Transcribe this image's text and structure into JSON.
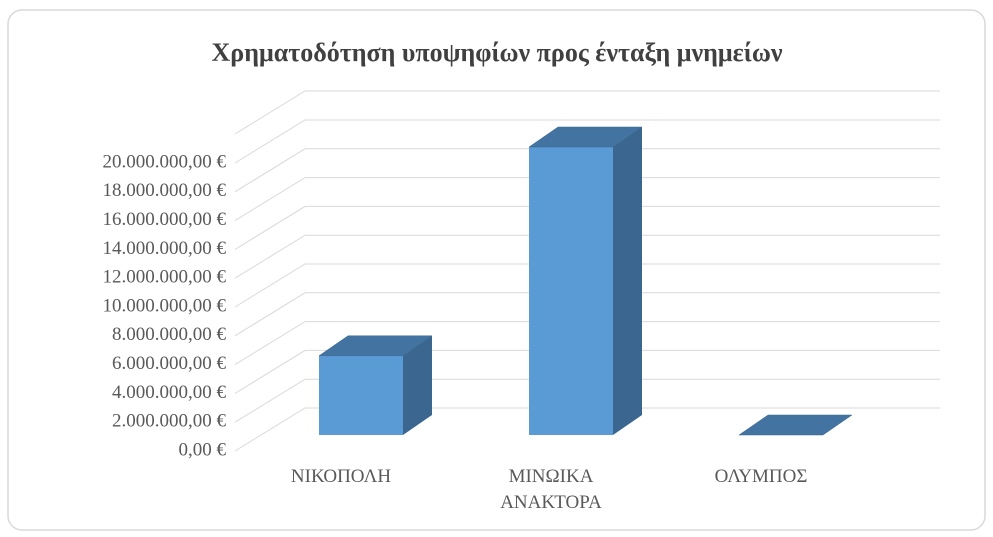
{
  "chart_data": {
    "type": "bar3d",
    "title": "Χρηματοδότηση υποψηφίων προς ένταξη μνημείων",
    "categories": [
      "ΝΙΚΟΠΟΛΗ",
      "ΜΙΝΩΙΚΑ ΑΝΑΚΤΟΡΑ",
      "ΟΛΥΜΠΟΣ"
    ],
    "values": [
      5500000,
      20000000,
      0
    ],
    "color": "#5b9bd5",
    "ylim": [
      0,
      20000000
    ],
    "yticks": [
      {
        "value": 0,
        "label": "0,00 €"
      },
      {
        "value": 2000000,
        "label": "2.000.000,00 €"
      },
      {
        "value": 4000000,
        "label": "4.000.000,00 €"
      },
      {
        "value": 6000000,
        "label": "6.000.000,00 €"
      },
      {
        "value": 8000000,
        "label": "8.000.000,00 €"
      },
      {
        "value": 10000000,
        "label": "10.000.000,00 €"
      },
      {
        "value": 12000000,
        "label": "12.000.000,00 €"
      },
      {
        "value": 14000000,
        "label": "14.000.000,00 €"
      },
      {
        "value": 16000000,
        "label": "16.000.000,00 €"
      },
      {
        "value": 18000000,
        "label": "18.000.000,00 €"
      },
      {
        "value": 20000000,
        "label": "20.000.000,00 €"
      }
    ],
    "grid": true
  }
}
